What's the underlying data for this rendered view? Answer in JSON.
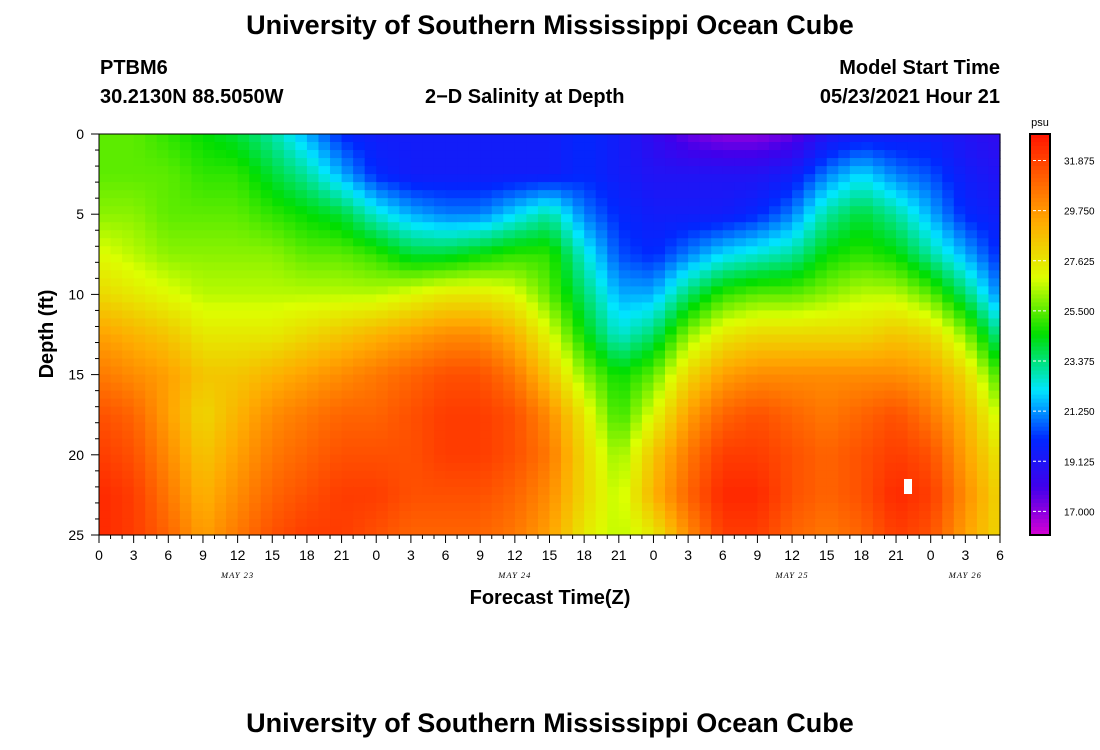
{
  "header": {
    "title": "University of Southern Mississippi Ocean Cube",
    "station": "PTBM6",
    "coords": "30.2130N  88.5050W",
    "plot_title": "2−D Salinity at Depth",
    "model_label": "Model Start Time",
    "model_time": "05/23/2021 Hour 21"
  },
  "footer": {
    "title": "University of Southern Mississippi Ocean Cube"
  },
  "chart_data": {
    "type": "heatmap",
    "title": "2-D Salinity at Depth",
    "xlabel": "Forecast Time(Z)",
    "ylabel": "Depth (ft)",
    "ylim": [
      0,
      25
    ],
    "y_ticks": [
      "0",
      "5",
      "10",
      "15",
      "20",
      "25"
    ],
    "x_range_hours": [
      0,
      78
    ],
    "x_ticks": [
      "0",
      "3",
      "6",
      "9",
      "12",
      "15",
      "18",
      "21",
      "0",
      "3",
      "6",
      "9",
      "12",
      "15",
      "18",
      "21",
      "0",
      "3",
      "6",
      "9",
      "12",
      "15",
      "18",
      "21",
      "0",
      "3",
      "6"
    ],
    "date_labels": [
      {
        "label": "MAY 23",
        "hour": 12
      },
      {
        "label": "MAY 24",
        "hour": 36
      },
      {
        "label": "MAY 25",
        "hour": 60
      },
      {
        "label": "MAY 26",
        "hour": 75
      }
    ],
    "colorbar": {
      "unit": "psu",
      "min": 16.0,
      "max": 33.0,
      "tick_labels": [
        "31.875",
        "29.750",
        "27.625",
        "25.500",
        "23.375",
        "21.250",
        "19.125",
        "17.000"
      ],
      "tick_values": [
        31.875,
        29.75,
        27.625,
        25.5,
        23.375,
        21.25,
        19.125,
        17.0
      ]
    },
    "grid_x_hours": [
      0,
      3,
      6,
      9,
      12,
      15,
      18,
      21,
      24,
      27,
      30,
      33,
      36,
      39,
      42,
      45,
      48,
      51,
      54,
      57,
      60,
      63,
      66,
      69,
      72,
      75,
      78
    ],
    "grid_depth_ft": [
      0,
      2.5,
      5,
      7.5,
      10,
      12.5,
      15,
      17.5,
      20,
      22.5,
      25
    ],
    "salinity_psu": [
      [
        25.5,
        25.5,
        25.0,
        24.5,
        24.0,
        23.0,
        21.5,
        20.0,
        19.5,
        19.5,
        19.5,
        19.5,
        19.5,
        19.5,
        20.0,
        19.5,
        18.5,
        17.5,
        17.0,
        17.0,
        17.5,
        19.0,
        19.5,
        19.5,
        19.5,
        19.0,
        18.5
      ],
      [
        25.5,
        25.5,
        25.5,
        25.0,
        25.0,
        24.0,
        23.0,
        21.5,
        20.0,
        19.5,
        19.5,
        19.5,
        19.5,
        19.5,
        20.0,
        19.5,
        19.0,
        19.0,
        19.0,
        19.0,
        19.5,
        21.0,
        22.0,
        21.0,
        20.5,
        19.5,
        19.0
      ],
      [
        26.0,
        26.0,
        25.5,
        25.5,
        25.5,
        25.0,
        24.5,
        24.0,
        22.5,
        21.5,
        21.0,
        21.0,
        22.0,
        23.0,
        21.0,
        20.0,
        19.5,
        19.5,
        19.5,
        20.0,
        21.0,
        23.0,
        24.0,
        23.0,
        21.5,
        20.0,
        19.5
      ],
      [
        27.0,
        26.5,
        26.0,
        26.0,
        26.0,
        26.0,
        25.5,
        25.5,
        25.0,
        24.0,
        24.0,
        24.5,
        25.0,
        25.0,
        22.5,
        20.5,
        20.0,
        21.0,
        22.0,
        22.5,
        23.0,
        24.5,
        25.0,
        24.5,
        23.0,
        21.5,
        20.0
      ],
      [
        28.0,
        27.5,
        27.0,
        26.5,
        26.5,
        26.5,
        26.5,
        26.5,
        26.5,
        27.0,
        27.5,
        27.5,
        27.0,
        25.5,
        23.5,
        21.5,
        21.5,
        23.5,
        25.0,
        25.5,
        25.5,
        26.0,
        26.5,
        26.5,
        25.5,
        23.5,
        21.0
      ],
      [
        29.5,
        29.0,
        28.5,
        27.5,
        27.5,
        27.5,
        28.0,
        28.5,
        29.0,
        29.5,
        30.0,
        30.0,
        29.0,
        27.0,
        24.5,
        22.5,
        23.5,
        26.0,
        27.5,
        28.0,
        28.0,
        28.0,
        28.0,
        28.5,
        28.0,
        26.0,
        23.0
      ],
      [
        30.5,
        30.0,
        29.5,
        28.5,
        28.5,
        29.0,
        29.5,
        30.0,
        30.5,
        31.0,
        31.5,
        31.5,
        30.5,
        28.5,
        26.0,
        24.5,
        25.5,
        28.0,
        29.5,
        30.0,
        30.0,
        30.0,
        30.0,
        30.0,
        29.5,
        28.0,
        25.0
      ],
      [
        31.5,
        31.0,
        29.5,
        28.0,
        29.0,
        30.0,
        30.5,
        31.0,
        31.0,
        31.5,
        32.0,
        32.0,
        31.5,
        30.0,
        27.5,
        25.0,
        27.0,
        29.5,
        31.0,
        31.5,
        31.0,
        30.5,
        31.0,
        31.5,
        30.5,
        29.0,
        26.5
      ],
      [
        32.0,
        31.5,
        30.0,
        28.5,
        29.5,
        30.5,
        31.0,
        31.5,
        31.5,
        31.5,
        32.0,
        32.0,
        31.5,
        30.5,
        28.0,
        26.0,
        28.5,
        30.5,
        32.0,
        32.0,
        31.5,
        31.0,
        31.5,
        32.0,
        31.5,
        29.5,
        27.5
      ],
      [
        32.5,
        32.0,
        30.5,
        29.0,
        30.0,
        31.0,
        31.5,
        32.0,
        32.0,
        31.5,
        31.5,
        31.5,
        31.0,
        30.0,
        28.0,
        26.5,
        29.0,
        31.0,
        32.5,
        32.5,
        31.5,
        31.0,
        31.5,
        32.5,
        32.0,
        30.0,
        28.0
      ],
      [
        32.5,
        32.0,
        31.0,
        29.5,
        30.5,
        31.5,
        32.0,
        32.0,
        31.5,
        31.0,
        31.0,
        31.0,
        30.5,
        29.5,
        27.5,
        26.5,
        27.5,
        30.0,
        32.0,
        32.0,
        31.0,
        30.5,
        31.0,
        32.0,
        31.5,
        29.5,
        28.0
      ]
    ]
  },
  "colors": {
    "background": "#ffffff",
    "text": "#000000",
    "mask_patch": "#ffffff"
  }
}
